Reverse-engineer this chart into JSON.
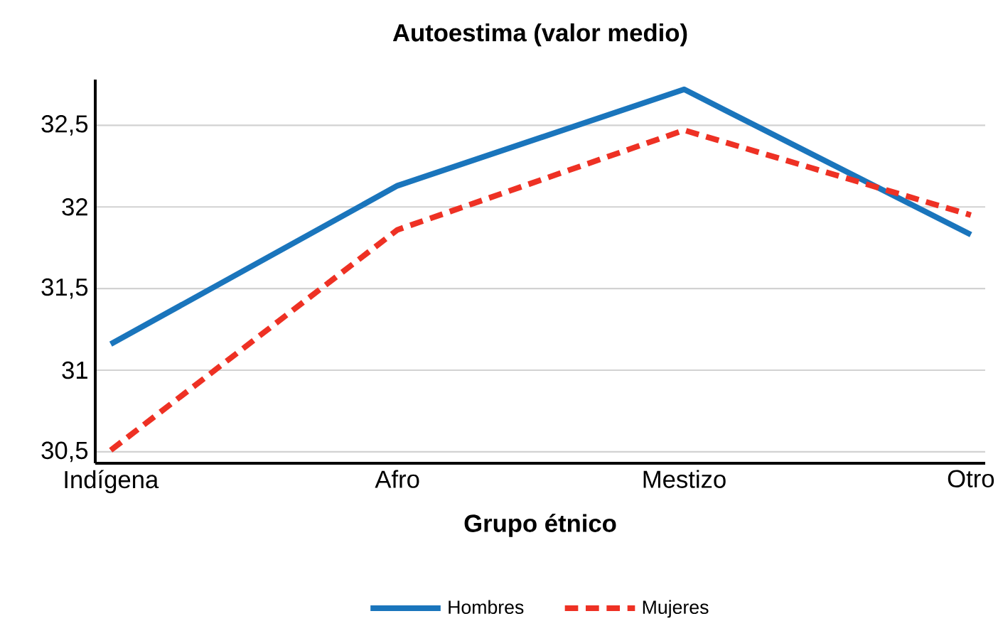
{
  "chart_data": {
    "type": "line",
    "title": "Autoestima (valor medio)",
    "xlabel": "Grupo étnico",
    "categories": [
      "Indígena",
      "Afro",
      "Mestizo",
      "Otro"
    ],
    "series": [
      {
        "name": "Hombres",
        "color": "#1a75bc",
        "line_style": "solid",
        "values": [
          31.16,
          32.13,
          32.72,
          31.83
        ]
      },
      {
        "name": "Mujeres",
        "color": "#ee3124",
        "line_style": "dashed",
        "values": [
          30.51,
          31.86,
          32.47,
          31.95
        ]
      }
    ],
    "ylim": [
      30.43,
      32.78
    ],
    "yticks": [
      {
        "value": 30.5,
        "label": "30,5"
      },
      31,
      {
        "value": 31.5,
        "label": "31,5"
      },
      32,
      {
        "value": 32.5,
        "label": "32,5"
      }
    ],
    "grid": "y",
    "legend": "bottom",
    "marker": "none"
  }
}
